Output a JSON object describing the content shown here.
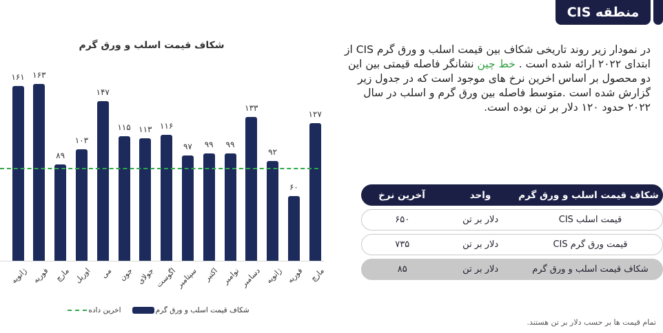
{
  "header": {
    "title": "منطقه CIS"
  },
  "intro": {
    "text_before": "در نمودار زیر روند تاریخی شکاف بین قیمت اسلب و ورق گرم CIS از ابتدای ۲۰۲۲ ارائه شده است . ",
    "highlight": "خط چین",
    "text_after": " نشانگر فاصله قیمتی بین این دو محصول بر اساس اخرین نرخ های موجود است که در جدول زیر گزارش شده است .متوسط فاصله بین ورق گرم و اسلب در سال ۲۰۲۲ حدود ۱۲۰ دلار بر تن بوده است.",
    "highlight_color": "#2e9e3e"
  },
  "chart_data": {
    "type": "bar",
    "title": "شکاف قیمت اسلب و ورق گرم",
    "categories": [
      "ژانویه",
      "فوریه",
      "مارچ",
      "اوریل",
      "می",
      "جون",
      "جولای",
      "اگوست",
      "سپتامبر",
      "اکتبر",
      "نوامبر",
      "دسامبر",
      "ژانویه",
      "فوریه",
      "مارچ"
    ],
    "values": [
      161,
      163,
      89,
      103,
      147,
      115,
      113,
      116,
      97,
      99,
      99,
      133,
      92,
      60,
      127
    ],
    "value_labels": [
      "۱۶۱",
      "۱۶۳",
      "۸۹",
      "۱۰۳",
      "۱۴۷",
      "۱۱۵",
      "۱۱۳",
      "۱۱۶",
      "۹۷",
      "۹۹",
      "۹۹",
      "۱۳۳",
      "۹۲",
      "۶۰",
      "۱۲۷"
    ],
    "reference_line": {
      "label": "اخرین داده",
      "value": 85,
      "style": "dashed",
      "color": "#2ea84a"
    },
    "series": [
      {
        "name": "شکاف قیمت اسلب و ورق گرم",
        "color": "#1c2a5c",
        "values": [
          161,
          163,
          89,
          103,
          147,
          115,
          113,
          116,
          97,
          99,
          99,
          133,
          92,
          60,
          127
        ]
      }
    ],
    "xlabel": "",
    "ylabel": "",
    "ylim": [
      0,
      170
    ],
    "grid": false,
    "legend_position": "bottom"
  },
  "legend": {
    "bar_label": "شکاف قیمت اسلب و ورق گرم",
    "line_label": "اخرین داده"
  },
  "table": {
    "headers": {
      "name": "شکاف قیمت اسلب و ورق گرم",
      "unit": "واحد",
      "rate": "آخرین نرخ"
    },
    "rows": [
      {
        "name": "قیمت اسلب CIS",
        "unit": "دلار بر تن",
        "rate": "۶۵۰"
      },
      {
        "name": "قیمت ورق گرم CIS",
        "unit": "دلار بر تن",
        "rate": "۷۳۵"
      },
      {
        "name": "شکاف قیمت اسلب و ورق گرم",
        "unit": "دلار بر تن",
        "rate": "۸۵"
      }
    ]
  },
  "footnote": "تمام قیمت ها بر حسب دلار بر تن هستند."
}
